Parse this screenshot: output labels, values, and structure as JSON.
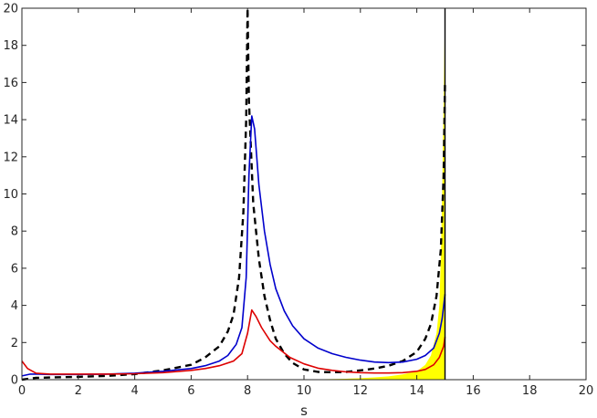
{
  "chart_data": {
    "type": "line",
    "title": "",
    "xlabel": "s",
    "ylabel": "",
    "xlim": [
      0,
      20
    ],
    "ylim": [
      0,
      20
    ],
    "xticks": [
      0,
      2,
      4,
      6,
      8,
      10,
      12,
      14,
      16,
      18,
      20
    ],
    "yticks": [
      0,
      2,
      4,
      6,
      8,
      10,
      12,
      14,
      16,
      18,
      20
    ],
    "grid": false,
    "legend": "none",
    "series": [
      {
        "color": "#000000",
        "style": "dashed",
        "x": [
          0,
          0.5,
          1,
          2,
          3,
          4,
          5,
          6,
          6.5,
          7,
          7.3,
          7.5,
          7.7,
          7.85,
          7.95,
          8.0,
          8.05,
          8.2,
          8.4,
          8.6,
          8.8,
          9.0,
          9.3,
          9.6,
          10,
          10.5,
          11,
          11.5,
          12,
          12.5,
          13,
          13.5,
          14,
          14.3,
          14.5,
          14.7,
          14.85,
          14.95,
          15.0
        ],
        "y": [
          0.0,
          0.1,
          0.12,
          0.15,
          0.2,
          0.3,
          0.5,
          0.8,
          1.2,
          1.8,
          2.6,
          3.5,
          5.5,
          9.0,
          14.0,
          20.0,
          15.0,
          9.5,
          6.5,
          4.5,
          3.2,
          2.2,
          1.4,
          0.9,
          0.55,
          0.42,
          0.4,
          0.42,
          0.5,
          0.6,
          0.75,
          1.0,
          1.5,
          2.2,
          3.0,
          4.5,
          7.0,
          11.0,
          16.0
        ]
      },
      {
        "color": "#0000cc",
        "style": "solid",
        "x": [
          0,
          0.3,
          0.6,
          1,
          2,
          3,
          4,
          5,
          6,
          6.5,
          7,
          7.3,
          7.6,
          7.8,
          7.95,
          8.05,
          8.15,
          8.25,
          8.4,
          8.6,
          8.8,
          9.0,
          9.3,
          9.6,
          10,
          10.5,
          11,
          11.5,
          12,
          12.5,
          13,
          13.5,
          14,
          14.3,
          14.6,
          14.8,
          14.9,
          15.0
        ],
        "y": [
          0.2,
          0.3,
          0.3,
          0.28,
          0.28,
          0.3,
          0.35,
          0.45,
          0.6,
          0.75,
          1.0,
          1.3,
          1.9,
          2.8,
          5.5,
          11.0,
          14.2,
          13.5,
          10.5,
          8.0,
          6.2,
          4.9,
          3.7,
          2.9,
          2.2,
          1.7,
          1.4,
          1.2,
          1.05,
          0.95,
          0.92,
          0.95,
          1.1,
          1.3,
          1.7,
          2.5,
          3.3,
          4.6
        ]
      },
      {
        "color": "#dd0000",
        "style": "solid",
        "x": [
          0,
          0.2,
          0.5,
          1,
          2,
          3,
          4,
          5,
          6,
          6.5,
          7,
          7.5,
          7.8,
          8.0,
          8.15,
          8.3,
          8.5,
          8.8,
          9.0,
          9.5,
          10,
          10.5,
          11,
          11.5,
          12,
          12.5,
          13,
          13.5,
          14,
          14.3,
          14.6,
          14.8,
          14.95,
          15.0
        ],
        "y": [
          1.0,
          0.6,
          0.35,
          0.3,
          0.3,
          0.3,
          0.32,
          0.38,
          0.5,
          0.6,
          0.75,
          1.0,
          1.4,
          2.5,
          3.75,
          3.4,
          2.8,
          2.1,
          1.8,
          1.2,
          0.85,
          0.62,
          0.5,
          0.42,
          0.38,
          0.36,
          0.36,
          0.38,
          0.45,
          0.55,
          0.8,
          1.2,
          1.8,
          2.3
        ]
      }
    ],
    "fill": {
      "color": "#ffff00",
      "x": [
        9.5,
        10.5,
        11.5,
        12,
        12.5,
        13,
        13.5,
        14,
        14.3,
        14.5,
        14.7,
        14.8,
        14.85,
        14.9,
        14.95,
        15.0
      ],
      "y": [
        0.0,
        0.02,
        0.05,
        0.08,
        0.12,
        0.18,
        0.28,
        0.45,
        0.8,
        1.3,
        2.5,
        4.0,
        6.5,
        10.0,
        15.0,
        20.0
      ]
    },
    "vline": {
      "x": 15.0,
      "color": "#000000"
    }
  }
}
